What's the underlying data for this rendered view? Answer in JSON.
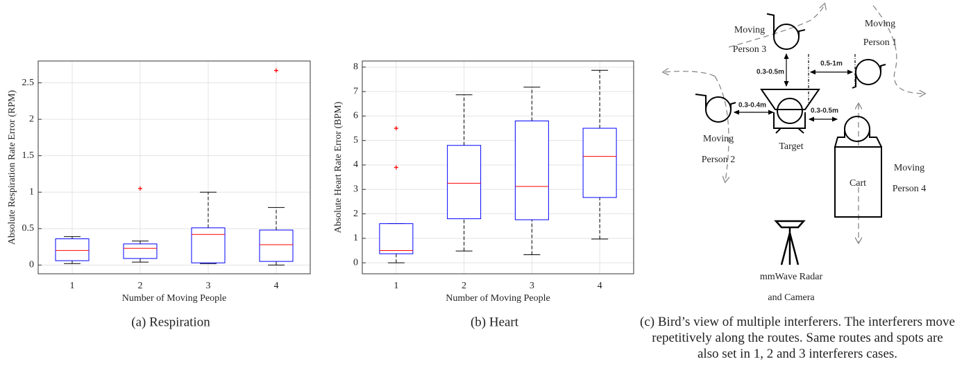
{
  "chart_data": [
    {
      "type": "box",
      "xlabel": "Number of Moving People",
      "ylabel": "Absolute Respiration Rate Error (RPM)",
      "caption": "(a) Respiration",
      "categories": [
        "1",
        "2",
        "3",
        "4"
      ],
      "boxes": [
        {
          "whisker_low": 0.02,
          "q1": 0.06,
          "median": 0.2,
          "q3": 0.36,
          "whisker_high": 0.39,
          "outliers": []
        },
        {
          "whisker_low": 0.04,
          "q1": 0.09,
          "median": 0.23,
          "q3": 0.29,
          "whisker_high": 0.33,
          "outliers": [
            1.05
          ]
        },
        {
          "whisker_low": 0.02,
          "q1": 0.03,
          "median": 0.42,
          "q3": 0.51,
          "whisker_high": 1.0,
          "outliers": []
        },
        {
          "whisker_low": 0,
          "q1": 0.05,
          "median": 0.28,
          "q3": 0.48,
          "whisker_high": 0.79,
          "outliers": [
            2.67
          ]
        }
      ],
      "box_color": "#0000ff",
      "median_color": "#ff0000",
      "outlier_color": "#ff0000",
      "ylim": [
        -0.12,
        2.8
      ],
      "yticks": [
        0,
        0.5,
        1,
        1.5,
        2,
        2.5
      ],
      "grid": true
    },
    {
      "type": "box",
      "xlabel": "Number of Moving People",
      "ylabel": "Absolute Heart Rate Error (BPM)",
      "caption": "(b) Heart",
      "categories": [
        "1",
        "2",
        "3",
        "4"
      ],
      "boxes": [
        {
          "whisker_low": 0,
          "q1": 0.37,
          "median": 0.5,
          "q3": 1.6,
          "whisker_high": 1.6,
          "outliers": [
            3.9,
            5.5
          ]
        },
        {
          "whisker_low": 0.48,
          "q1": 1.8,
          "median": 3.25,
          "q3": 4.8,
          "whisker_high": 6.87,
          "outliers": []
        },
        {
          "whisker_low": 0.33,
          "q1": 1.76,
          "median": 3.12,
          "q3": 5.8,
          "whisker_high": 7.18,
          "outliers": []
        },
        {
          "whisker_low": 0.97,
          "q1": 2.67,
          "median": 4.35,
          "q3": 5.5,
          "whisker_high": 7.87,
          "outliers": []
        }
      ],
      "box_color": "#0000ff",
      "median_color": "#ff0000",
      "outlier_color": "#ff0000",
      "ylim": [
        -0.45,
        8.25
      ],
      "yticks": [
        0,
        1,
        2,
        3,
        4,
        5,
        6,
        7,
        8
      ],
      "grid": true
    }
  ],
  "diagram": {
    "person3": [
      "Moving",
      "Person 3"
    ],
    "person1": [
      "Moving",
      "Person 1"
    ],
    "person2": [
      "Moving",
      "Person 2"
    ],
    "person4": [
      "Moving",
      "Person 4"
    ],
    "target": "Target",
    "cart": "Cart",
    "radar": [
      "mmWave Radar",
      "and Camera"
    ],
    "distances": [
      "0.3-0.5m",
      "0.5-1m",
      "0.3-0.4m",
      "0.3-0.5m"
    ],
    "caption": "(c) Bird’s view of multiple interferers. The interferers move repetitively along the routes. Same routes and spots are also set in 1, 2 and 3 interferers cases."
  }
}
